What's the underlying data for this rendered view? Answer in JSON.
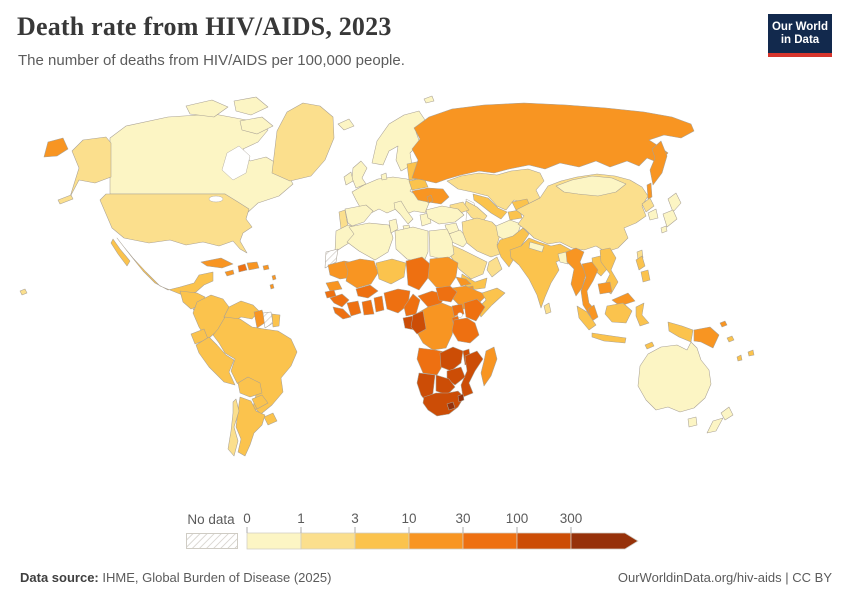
{
  "header": {
    "title": "Death rate from HIV/AIDS, 2023",
    "subtitle": "The number of deaths from HIV/AIDS per 100,000 people.",
    "logo": {
      "line1": "Our World",
      "line2": "in Data",
      "bg_color": "#12294d",
      "accent_color": "#d7352c"
    }
  },
  "legend": {
    "no_data_label": "No data",
    "tick_labels": [
      "0",
      "1",
      "3",
      "10",
      "30",
      "100",
      "300"
    ],
    "text_color": "#5b5b5b",
    "swatch_border": "#cfccc4"
  },
  "footer": {
    "source_label": "Data source:",
    "source_text": " IHME, Global Burden of Disease (2025)",
    "link_text": "OurWorldinData.org/hiv-aids | CC BY"
  },
  "chart_data": {
    "type": "choropleth_map",
    "title": "Death rate from HIV/AIDS, 2023",
    "unit": "deaths from HIV/AIDS per 100,000 people",
    "year": "2023",
    "projection": "world",
    "legend_position": "bottom",
    "bins": [
      {
        "range": "0-1",
        "color": "#FCF5C4"
      },
      {
        "range": "1-3",
        "color": "#FBDF8D"
      },
      {
        "range": "3-10",
        "color": "#FBC34D"
      },
      {
        "range": "10-30",
        "color": "#F89522"
      },
      {
        "range": "30-100",
        "color": "#EE7011"
      },
      {
        "range": "100-300",
        "color": "#CC4D06"
      },
      {
        "range": "300+",
        "color": "#963109"
      }
    ],
    "no_data_color": "hatch",
    "countries": {
      "canada": 0,
      "united-states": 1,
      "greenland": 1,
      "mexico": 2,
      "central-america-north": 2,
      "costa-rica": 2,
      "panama": 3,
      "cuba": 3,
      "jamaica": 3,
      "haiti": 4,
      "dominican-republic": 3,
      "puerto-rico": 3,
      "lesser-antilles": 3,
      "colombia": 2,
      "venezuela": 2,
      "guyana": 3,
      "suriname": "nodata",
      "french-guiana": 2,
      "ecuador": 2,
      "peru": 2,
      "brazil": 2,
      "bolivia": 2,
      "paraguay": 2,
      "uruguay": 2,
      "argentina": 2,
      "chile": 1,
      "iceland": 0,
      "united-kingdom": 0,
      "ireland": 0,
      "scandinavia": 0,
      "denmark": 0,
      "europe-mainland": 0,
      "portugal": 1,
      "spain": 0,
      "italy": 0,
      "greece": 0,
      "baltic-states": 2,
      "belarus": 2,
      "ukraine": 3,
      "moldova": 3,
      "svalbard": 0,
      "russia": 3,
      "kazakhstan": 1,
      "uzbekistan": 2,
      "turkmenistan": 1,
      "kyrgyzstan": 2,
      "tajikistan": 2,
      "caucasus": 1,
      "turkey": 0,
      "syria": 0,
      "iraq": 0,
      "jordan-israel": 0,
      "iran": 1,
      "saudi-arabia": 1,
      "yemen": 2,
      "oman": 1,
      "afghanistan": 0,
      "pakistan": 2,
      "india": 2,
      "sri-lanka": 1,
      "nepal": 0,
      "bangladesh": 0,
      "china": 1,
      "mongolia": 0,
      "north-korea": 1,
      "south-korea": 0,
      "japan": 0,
      "taiwan": 1,
      "myanmar": 3,
      "thailand": 3,
      "laos": 2,
      "vietnam": 2,
      "cambodia": 3,
      "malaysia": 3,
      "indonesia": 2,
      "philippines": 2,
      "papua-new-guinea": 3,
      "australia": 0,
      "new-zealand": 0,
      "fiji": 2,
      "solomon-islands": 2,
      "vanuatu": 2,
      "morocco": 0,
      "western-sahara": "nodata",
      "algeria": 0,
      "tunisia": 0,
      "libya": 0,
      "egypt": 0,
      "mauritania": 3,
      "mali": 3,
      "niger": 2,
      "chad": 4,
      "sudan": 3,
      "eritrea": 3,
      "djibouti": 3,
      "ethiopia": 3,
      "somalia": 2,
      "senegal": 3,
      "gambia-guinea-bissau": 4,
      "guinea": 4,
      "sierra-leone-liberia": 4,
      "cote-divoire": 4,
      "ghana": 4,
      "togo-benin": 4,
      "burkina-faso": 4,
      "nigeria": 4,
      "cameroon": 4,
      "central-african-republic": 4,
      "south-sudan": 4,
      "dr-congo": 3,
      "gabon": 5,
      "congo": 5,
      "uganda": 4,
      "kenya": 4,
      "rwanda-burundi": 4,
      "tanzania": 4,
      "angola": 4,
      "zambia": 5,
      "malawi": 5,
      "mozambique": 5,
      "zimbabwe": 5,
      "botswana": 5,
      "namibia": 5,
      "south-africa": 5,
      "lesotho": 6,
      "eswatini": 6,
      "madagascar": 3
    }
  }
}
